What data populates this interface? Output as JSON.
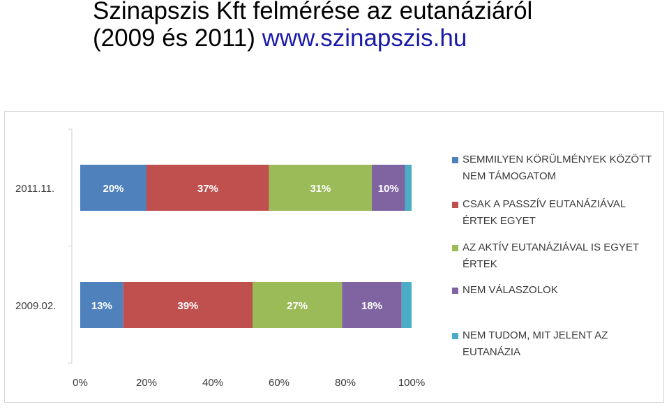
{
  "title": {
    "line1": "Szinapszis Kft felmérése az eutanáziáról",
    "line2": "(2009 és 2011)",
    "url": "www.szinapszis.hu"
  },
  "colors": {
    "accent_url": "#1a1aa8"
  },
  "chart_data": {
    "type": "bar",
    "orientation": "horizontal",
    "stacked": true,
    "percent_stacked": true,
    "categories": [
      "2011.11.",
      "2009.02."
    ],
    "series": [
      {
        "name": "SEMMILYEN KÖRÜLMÉNYEK KÖZÖTT NEM TÁMOGATOM",
        "color": "#4f81bd",
        "values": [
          20,
          13
        ],
        "labels": [
          "20%",
          "13%"
        ]
      },
      {
        "name": "CSAK A PASSZÍV EUTANÁZIÁVAL ÉRTEK EGYET",
        "color": "#c0504d",
        "values": [
          37,
          39
        ],
        "labels": [
          "37%",
          "39%"
        ]
      },
      {
        "name": "AZ AKTÍV EUTANÁZIÁVAL IS EGYET ÉRTEK",
        "color": "#9bbb59",
        "values": [
          31,
          27
        ],
        "labels": [
          "31%",
          "27%"
        ]
      },
      {
        "name": "NEM VÁLASZOLOK",
        "color": "#8064a2",
        "values": [
          10,
          18
        ],
        "labels": [
          "10%",
          "18%"
        ]
      },
      {
        "name": "NEM TUDOM, MIT JELENT AZ EUTANÁZIA",
        "color": "#4bacc6",
        "values": [
          2,
          3
        ],
        "labels": [
          "",
          ""
        ]
      }
    ],
    "x_ticks": [
      "0%",
      "20%",
      "40%",
      "60%",
      "80%",
      "100%"
    ],
    "xlim": [
      0,
      100
    ],
    "grid": false,
    "legend_position": "right"
  }
}
